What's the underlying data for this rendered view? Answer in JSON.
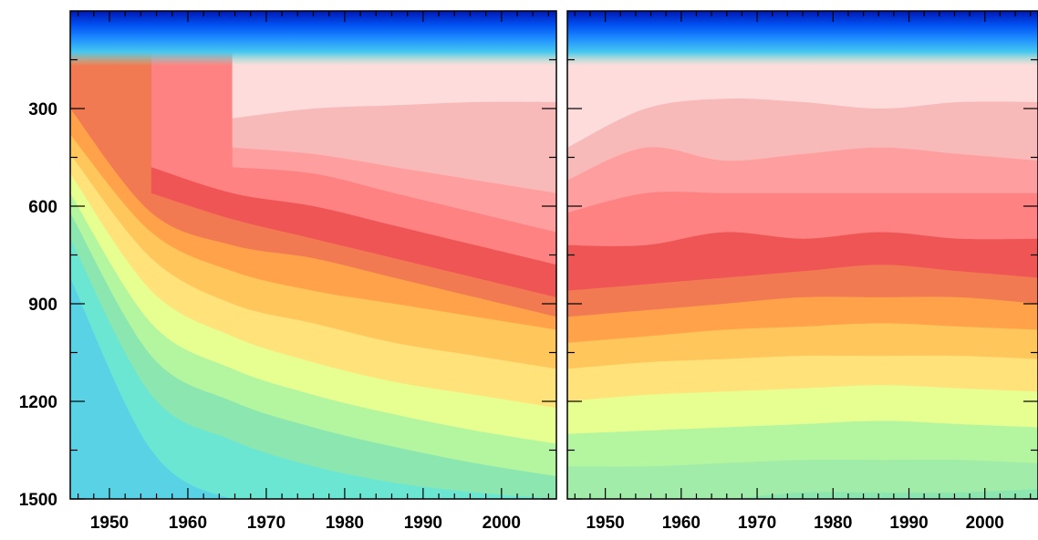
{
  "chart_data": [
    {
      "type": "heatmap",
      "panel": "left",
      "title": "",
      "xlabel": "",
      "ylabel": "",
      "xlim": [
        1945,
        2007
      ],
      "ylim": [
        1500,
        0
      ],
      "x_ticks": [
        "1950",
        "1960",
        "1970",
        "1980",
        "1990",
        "2000"
      ],
      "y_ticks": [
        "300",
        "600",
        "900",
        "1200",
        "1500"
      ],
      "colorbar": "none",
      "levels": [
        {
          "level": 0,
          "color": "#ffdcdc",
          "max_depth": [
            null,
            null,
            330,
            300,
            290,
            280,
            280
          ]
        },
        {
          "level": 1,
          "color": "#f8b9b9",
          "max_depth": [
            null,
            null,
            420,
            440,
            480,
            520,
            560
          ]
        },
        {
          "level": 2,
          "color": "#ff9e9e",
          "max_depth": [
            null,
            null,
            480,
            500,
            560,
            620,
            680
          ]
        },
        {
          "level": 3,
          "color": "#ff8282",
          "max_depth": [
            null,
            480,
            560,
            600,
            660,
            720,
            780
          ]
        },
        {
          "level": 4,
          "color": "#ef5555",
          "max_depth": [
            null,
            560,
            640,
            700,
            760,
            820,
            880
          ]
        },
        {
          "level": 5,
          "color": "#f27a52",
          "max_depth": [
            300,
            620,
            720,
            760,
            820,
            880,
            940
          ]
        },
        {
          "level": 6,
          "color": "#ffa24a",
          "max_depth": [
            380,
            680,
            800,
            860,
            900,
            940,
            980
          ]
        },
        {
          "level": 7,
          "color": "#ffc65c",
          "max_depth": [
            440,
            760,
            900,
            960,
            1020,
            1060,
            1100
          ]
        },
        {
          "level": 8,
          "color": "#ffe27a",
          "max_depth": [
            500,
            860,
            1000,
            1080,
            1140,
            1180,
            1220
          ]
        },
        {
          "level": 9,
          "color": "#e6ff90",
          "max_depth": [
            560,
            960,
            1100,
            1180,
            1240,
            1290,
            1330
          ]
        },
        {
          "level": 10,
          "color": "#b4f5a0",
          "max_depth": [
            620,
            1060,
            1200,
            1280,
            1340,
            1390,
            1430
          ]
        },
        {
          "level": 11,
          "color": "#8ce6b0",
          "max_depth": [
            700,
            1180,
            1320,
            1400,
            1450,
            1480,
            1500
          ]
        },
        {
          "level": 12,
          "color": "#6ae6d2",
          "max_depth": [
            820,
            1350,
            1500,
            1500,
            1500,
            1500,
            1500
          ]
        },
        {
          "level": 13,
          "color": "#5ad2e6",
          "max_depth": [
            1500,
            1500,
            1500,
            1500,
            1500,
            1500,
            1500
          ]
        }
      ]
    },
    {
      "type": "heatmap",
      "panel": "right",
      "title": "",
      "xlabel": "",
      "ylabel": "",
      "xlim": [
        1945,
        2007
      ],
      "ylim": [
        1500,
        0
      ],
      "x_ticks": [
        "1950",
        "1960",
        "1970",
        "1980",
        "1990",
        "2000"
      ],
      "y_ticks": [],
      "colorbar": "none",
      "levels": [
        {
          "level": 0,
          "color": "#ffdcdc",
          "max_depth": [
            420,
            300,
            270,
            280,
            300,
            280,
            280
          ]
        },
        {
          "level": 1,
          "color": "#f8b9b9",
          "max_depth": [
            520,
            420,
            460,
            440,
            420,
            440,
            460
          ]
        },
        {
          "level": 2,
          "color": "#ff9e9e",
          "max_depth": [
            620,
            560,
            560,
            560,
            560,
            560,
            560
          ]
        },
        {
          "level": 3,
          "color": "#ff8282",
          "max_depth": [
            720,
            720,
            680,
            700,
            680,
            700,
            700
          ]
        },
        {
          "level": 4,
          "color": "#ef5555",
          "max_depth": [
            860,
            840,
            820,
            800,
            780,
            800,
            820
          ]
        },
        {
          "level": 5,
          "color": "#f27a52",
          "max_depth": [
            940,
            920,
            900,
            880,
            880,
            880,
            900
          ]
        },
        {
          "level": 6,
          "color": "#ffa24a",
          "max_depth": [
            1020,
            1000,
            980,
            970,
            960,
            970,
            980
          ]
        },
        {
          "level": 7,
          "color": "#ffc65c",
          "max_depth": [
            1100,
            1080,
            1070,
            1060,
            1060,
            1060,
            1070
          ]
        },
        {
          "level": 8,
          "color": "#ffe27a",
          "max_depth": [
            1200,
            1180,
            1170,
            1160,
            1150,
            1160,
            1170
          ]
        },
        {
          "level": 9,
          "color": "#e6ff90",
          "max_depth": [
            1300,
            1290,
            1280,
            1270,
            1260,
            1270,
            1280
          ]
        },
        {
          "level": 10,
          "color": "#b4f5a0",
          "max_depth": [
            1400,
            1400,
            1390,
            1380,
            1380,
            1380,
            1390
          ]
        },
        {
          "level": 11,
          "color": "#a0eca8",
          "max_depth": [
            1500,
            1500,
            1500,
            1480,
            1480,
            1480,
            1470
          ]
        },
        {
          "level": 12,
          "color": "#8ce6b0",
          "max_depth": [
            1500,
            1500,
            1500,
            1500,
            1500,
            1500,
            1500
          ]
        }
      ]
    }
  ]
}
